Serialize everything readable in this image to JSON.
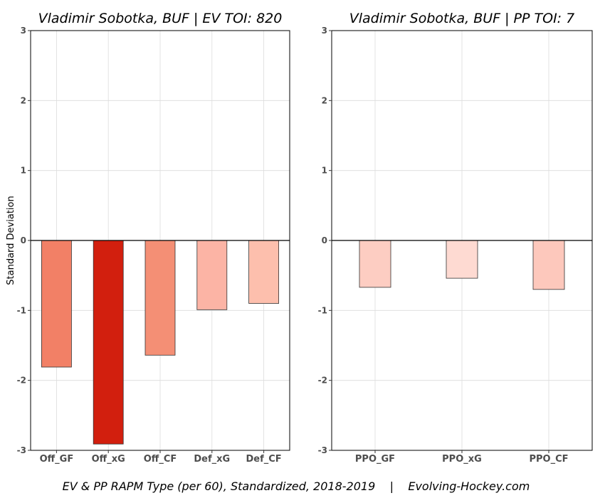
{
  "caption": "EV & PP RAPM Type (per 60), Standardized, 2018-2019    |    Evolving-Hockey.com",
  "chart_data": [
    {
      "type": "bar",
      "title": "Vladimir Sobotka, BUF  |  EV TOI: 820",
      "ylabel": "Standard Deviation",
      "xlabel": "",
      "ylim": [
        -3,
        3
      ],
      "yticks": [
        -3,
        -2,
        -1,
        0,
        1,
        2,
        3
      ],
      "grid": true,
      "categories": [
        "Off_GF",
        "Off_xG",
        "Off_CF",
        "Def_xG",
        "Def_CF"
      ],
      "values": [
        -1.81,
        -2.91,
        -1.64,
        -0.99,
        -0.9
      ],
      "colors": [
        "#f28066",
        "#d21f0e",
        "#f48f75",
        "#fcb4a5",
        "#fdbfad"
      ]
    },
    {
      "type": "bar",
      "title": "Vladimir Sobotka, BUF  |  PP TOI: 7",
      "ylabel": "",
      "xlabel": "",
      "ylim": [
        -3,
        3
      ],
      "yticks": [
        -3,
        -2,
        -1,
        0,
        1,
        2,
        3
      ],
      "grid": true,
      "categories": [
        "PPO_GF",
        "PPO_xG",
        "PPO_CF"
      ],
      "values": [
        -0.67,
        -0.54,
        -0.7
      ],
      "colors": [
        "#fdcdc2",
        "#fedad2",
        "#fdc8bc"
      ]
    }
  ]
}
